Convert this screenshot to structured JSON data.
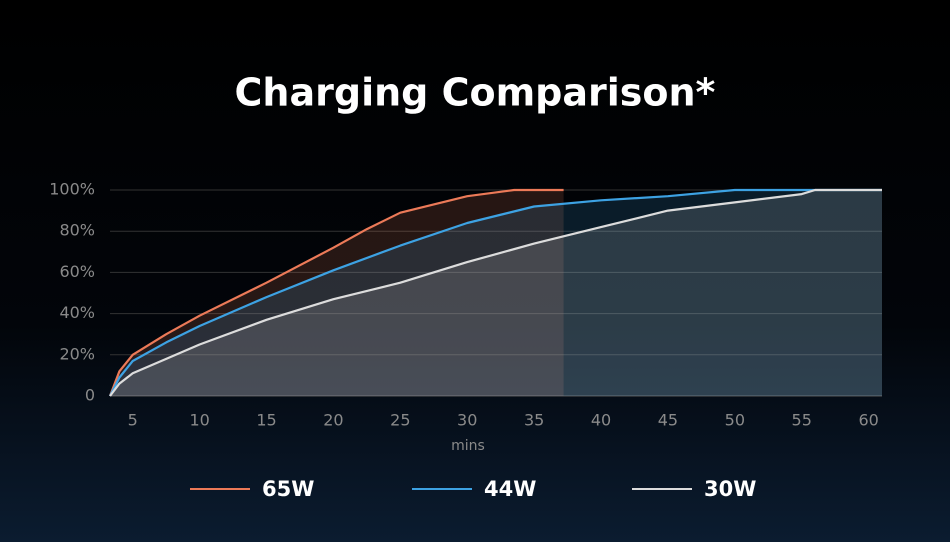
{
  "chart_data": {
    "type": "area-line",
    "title": "Charging Comparison*",
    "x_label": "mins",
    "xlim": [
      3.3,
      61
    ],
    "xticks": [
      5,
      10,
      15,
      20,
      25,
      30,
      35,
      40,
      45,
      50,
      55,
      60
    ],
    "ylim": [
      0,
      100
    ],
    "yticks": [
      0,
      {
        "value": 20,
        "label": "20%"
      },
      {
        "value": 40,
        "label": "40%"
      },
      {
        "value": 60,
        "label": "60%"
      },
      {
        "value": 80,
        "label": "80%"
      },
      {
        "value": 100,
        "label": "100%"
      }
    ],
    "grid": true,
    "series": [
      {
        "name": "65W",
        "color": "#ec7a58",
        "x": [
          3.3,
          4,
          5,
          7.5,
          10,
          15,
          20,
          22.5,
          25,
          30,
          33.5,
          37.2
        ],
        "values": [
          0,
          12,
          20,
          30,
          39,
          55,
          72,
          81,
          89,
          97,
          100,
          100
        ]
      },
      {
        "name": "44W",
        "color": "#3da2e3",
        "x": [
          3.3,
          4,
          5,
          7.5,
          10,
          15,
          20,
          25,
          30,
          35,
          40,
          45,
          50,
          61
        ],
        "values": [
          0,
          9,
          17,
          26,
          34,
          48,
          61,
          73,
          84,
          92,
          95,
          97,
          100,
          100
        ]
      },
      {
        "name": "30W",
        "color": "#dcdcdc",
        "x": [
          3.3,
          4,
          5,
          7.5,
          10,
          15,
          20,
          25,
          30,
          35,
          40,
          45,
          50,
          55,
          56,
          61
        ],
        "values": [
          0,
          6,
          11,
          18,
          25,
          37,
          47,
          55,
          65,
          74,
          82,
          90,
          94,
          98,
          100,
          100
        ]
      }
    ]
  }
}
